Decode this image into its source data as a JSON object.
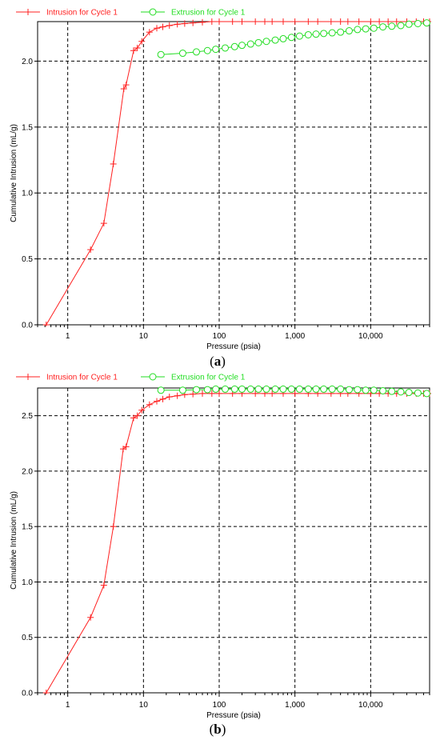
{
  "chart_data": [
    {
      "type": "line",
      "panel_label": "a",
      "xlabel": "Pressure (psia)",
      "ylabel": "Cumulative Intrusion (mL/g)",
      "xscale": "log",
      "xlim": [
        0.4,
        60000
      ],
      "ylim": [
        0,
        2.3
      ],
      "x_ticks": [
        1,
        10,
        100,
        1000,
        10000
      ],
      "x_tick_labels": [
        "1",
        "10",
        "100",
        "1,000",
        "10,000"
      ],
      "y_ticks": [
        0,
        0.5,
        1.0,
        1.5,
        2.0
      ],
      "y_tick_labels": [
        "0.0",
        "0.5",
        "1.0",
        "1.5",
        "2.0"
      ],
      "grid": true,
      "legend_position": "top-left",
      "series": [
        {
          "name": "Intrusion for Cycle 1",
          "color": "#ff2020",
          "marker": "plus",
          "x": [
            0.52,
            2.0,
            3.0,
            4.0,
            5.5,
            5.9,
            7.4,
            8.3,
            9.5,
            12,
            15,
            18,
            22,
            28,
            35,
            45,
            60,
            80,
            100,
            150,
            200,
            300,
            400,
            500,
            700,
            1000,
            1500,
            2000,
            3000,
            4000,
            5000,
            7000,
            10000,
            13000,
            17000,
            22000,
            30000,
            40000,
            50000,
            60000
          ],
          "y": [
            0.0,
            0.57,
            0.77,
            1.22,
            1.79,
            1.82,
            2.08,
            2.1,
            2.15,
            2.22,
            2.25,
            2.26,
            2.27,
            2.28,
            2.285,
            2.29,
            2.295,
            2.3,
            2.3,
            2.3,
            2.3,
            2.3,
            2.3,
            2.3,
            2.3,
            2.3,
            2.3,
            2.3,
            2.3,
            2.3,
            2.3,
            2.3,
            2.3,
            2.3,
            2.3,
            2.3,
            2.3,
            2.3,
            2.3,
            2.3
          ]
        },
        {
          "name": "Extrusion for Cycle 1",
          "color": "#22dd22",
          "marker": "circle",
          "x": [
            17,
            33,
            50,
            70,
            90,
            120,
            160,
            200,
            260,
            330,
            420,
            550,
            700,
            900,
            1150,
            1500,
            1900,
            2400,
            3100,
            4000,
            5200,
            6700,
            8600,
            11000,
            14500,
            19000,
            25000,
            32000,
            42000,
            55000
          ],
          "y": [
            2.05,
            2.06,
            2.07,
            2.08,
            2.09,
            2.1,
            2.11,
            2.12,
            2.13,
            2.14,
            2.15,
            2.16,
            2.17,
            2.18,
            2.19,
            2.2,
            2.205,
            2.21,
            2.215,
            2.22,
            2.23,
            2.24,
            2.245,
            2.25,
            2.26,
            2.265,
            2.27,
            2.28,
            2.285,
            2.29
          ]
        }
      ]
    },
    {
      "type": "line",
      "panel_label": "b",
      "xlabel": "Pressure (psia)",
      "ylabel": "Cumulative Intrusion (mL/g)",
      "xscale": "log",
      "xlim": [
        0.4,
        60000
      ],
      "ylim": [
        0,
        2.75
      ],
      "x_ticks": [
        1,
        10,
        100,
        1000,
        10000
      ],
      "x_tick_labels": [
        "1",
        "10",
        "100",
        "1,000",
        "10,000"
      ],
      "y_ticks": [
        0,
        0.5,
        1.0,
        1.5,
        2.0,
        2.5
      ],
      "y_tick_labels": [
        "0.0",
        "0.5",
        "1.0",
        "1.5",
        "2.0",
        "2.5"
      ],
      "grid": true,
      "legend_position": "top-left",
      "series": [
        {
          "name": "Intrusion for Cycle 1",
          "color": "#ff2020",
          "marker": "plus",
          "x": [
            0.52,
            2.0,
            3.0,
            4.0,
            5.4,
            5.9,
            7.4,
            8.3,
            9.5,
            12,
            15,
            18,
            22,
            28,
            35,
            45,
            60,
            80,
            100,
            150,
            200,
            300,
            400,
            500,
            700,
            1000,
            1500,
            2000,
            3000,
            4000,
            5000,
            7000,
            10000,
            13000,
            17000,
            22000,
            30000,
            40000,
            50000,
            60000
          ],
          "y": [
            0.0,
            0.68,
            0.97,
            1.5,
            2.2,
            2.22,
            2.48,
            2.5,
            2.55,
            2.6,
            2.63,
            2.65,
            2.67,
            2.68,
            2.69,
            2.695,
            2.7,
            2.7,
            2.7,
            2.7,
            2.7,
            2.7,
            2.7,
            2.7,
            2.7,
            2.7,
            2.7,
            2.7,
            2.7,
            2.7,
            2.7,
            2.7,
            2.7,
            2.7,
            2.7,
            2.7,
            2.7,
            2.7,
            2.7,
            2.7
          ]
        },
        {
          "name": "Extrusion for Cycle 1",
          "color": "#22dd22",
          "marker": "circle",
          "x": [
            17,
            33,
            50,
            70,
            90,
            120,
            160,
            200,
            260,
            330,
            420,
            550,
            700,
            900,
            1150,
            1500,
            1900,
            2400,
            3100,
            4000,
            5200,
            6700,
            8600,
            11000,
            14500,
            19000,
            25000,
            32000,
            42000,
            55000
          ],
          "y": [
            2.73,
            2.73,
            2.735,
            2.735,
            2.74,
            2.74,
            2.74,
            2.74,
            2.74,
            2.74,
            2.74,
            2.74,
            2.74,
            2.74,
            2.74,
            2.74,
            2.74,
            2.74,
            2.74,
            2.74,
            2.735,
            2.735,
            2.73,
            2.73,
            2.725,
            2.72,
            2.715,
            2.71,
            2.705,
            2.7
          ]
        }
      ]
    }
  ]
}
